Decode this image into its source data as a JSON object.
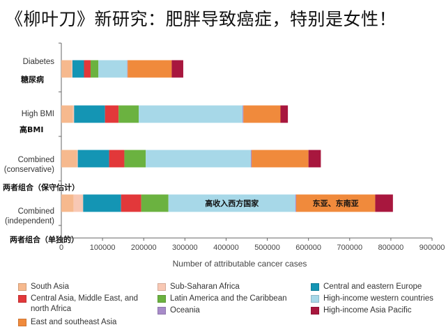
{
  "headline": "《柳叶刀》新研究：肥胖导致癌症，特别是女性！",
  "chart_data": {
    "type": "stacked-bar-horizontal",
    "xlabel": "Number of attributable cancer cases",
    "xlim": [
      0,
      900000
    ],
    "xticks": [
      "0",
      "100000",
      "200000",
      "300000",
      "400000",
      "500000",
      "600000",
      "700000",
      "800000",
      "900000"
    ],
    "categories": [
      {
        "label": "Diabetes",
        "zh": "糖尿病"
      },
      {
        "label": "High BMI",
        "zh": "高BMI"
      },
      {
        "label": "Combined (conservative)",
        "zh": "两者组合（保守估计）"
      },
      {
        "label": "Combined (independent)",
        "zh": "两者组合（单独的）"
      }
    ],
    "series": [
      {
        "name": "South Asia",
        "color": "#f6b98e",
        "values": [
          25000,
          28000,
          38000,
          30000
        ]
      },
      {
        "name": "Sub-Saharan Africa",
        "color": "#f8c8b4",
        "values": [
          2000,
          3000,
          2000,
          23000
        ]
      },
      {
        "name": "Central and eastern Europe",
        "color": "#1495b4",
        "values": [
          28000,
          75000,
          76000,
          92000
        ]
      },
      {
        "name": "Central Asia, Middle East, and north Africa",
        "color": "#e2383a",
        "values": [
          16000,
          33000,
          37000,
          49000
        ]
      },
      {
        "name": "Latin America and the Caribbean",
        "color": "#6bb240",
        "values": [
          19000,
          49000,
          52000,
          66000
        ]
      },
      {
        "name": "High-income western countries",
        "color": "#a7d8e8",
        "values": [
          70000,
          252000,
          255000,
          308000
        ]
      },
      {
        "name": "Oceania",
        "color": "#a78bc9",
        "values": [
          1000,
          2000,
          2000,
          2000
        ]
      },
      {
        "name": "East and southeast Asia",
        "color": "#f08a3c",
        "values": [
          107000,
          90000,
          138000,
          192000
        ]
      },
      {
        "name": "High-income Asia Pacific",
        "color": "#a8173e",
        "values": [
          28000,
          18000,
          30000,
          43000
        ]
      }
    ],
    "annotations": [
      {
        "text": "高收入西方国家",
        "category_index": 3,
        "series_index": 5
      },
      {
        "text": "东亚、东南亚",
        "category_index": 3,
        "series_index": 7
      }
    ],
    "legend_position": "bottom"
  }
}
